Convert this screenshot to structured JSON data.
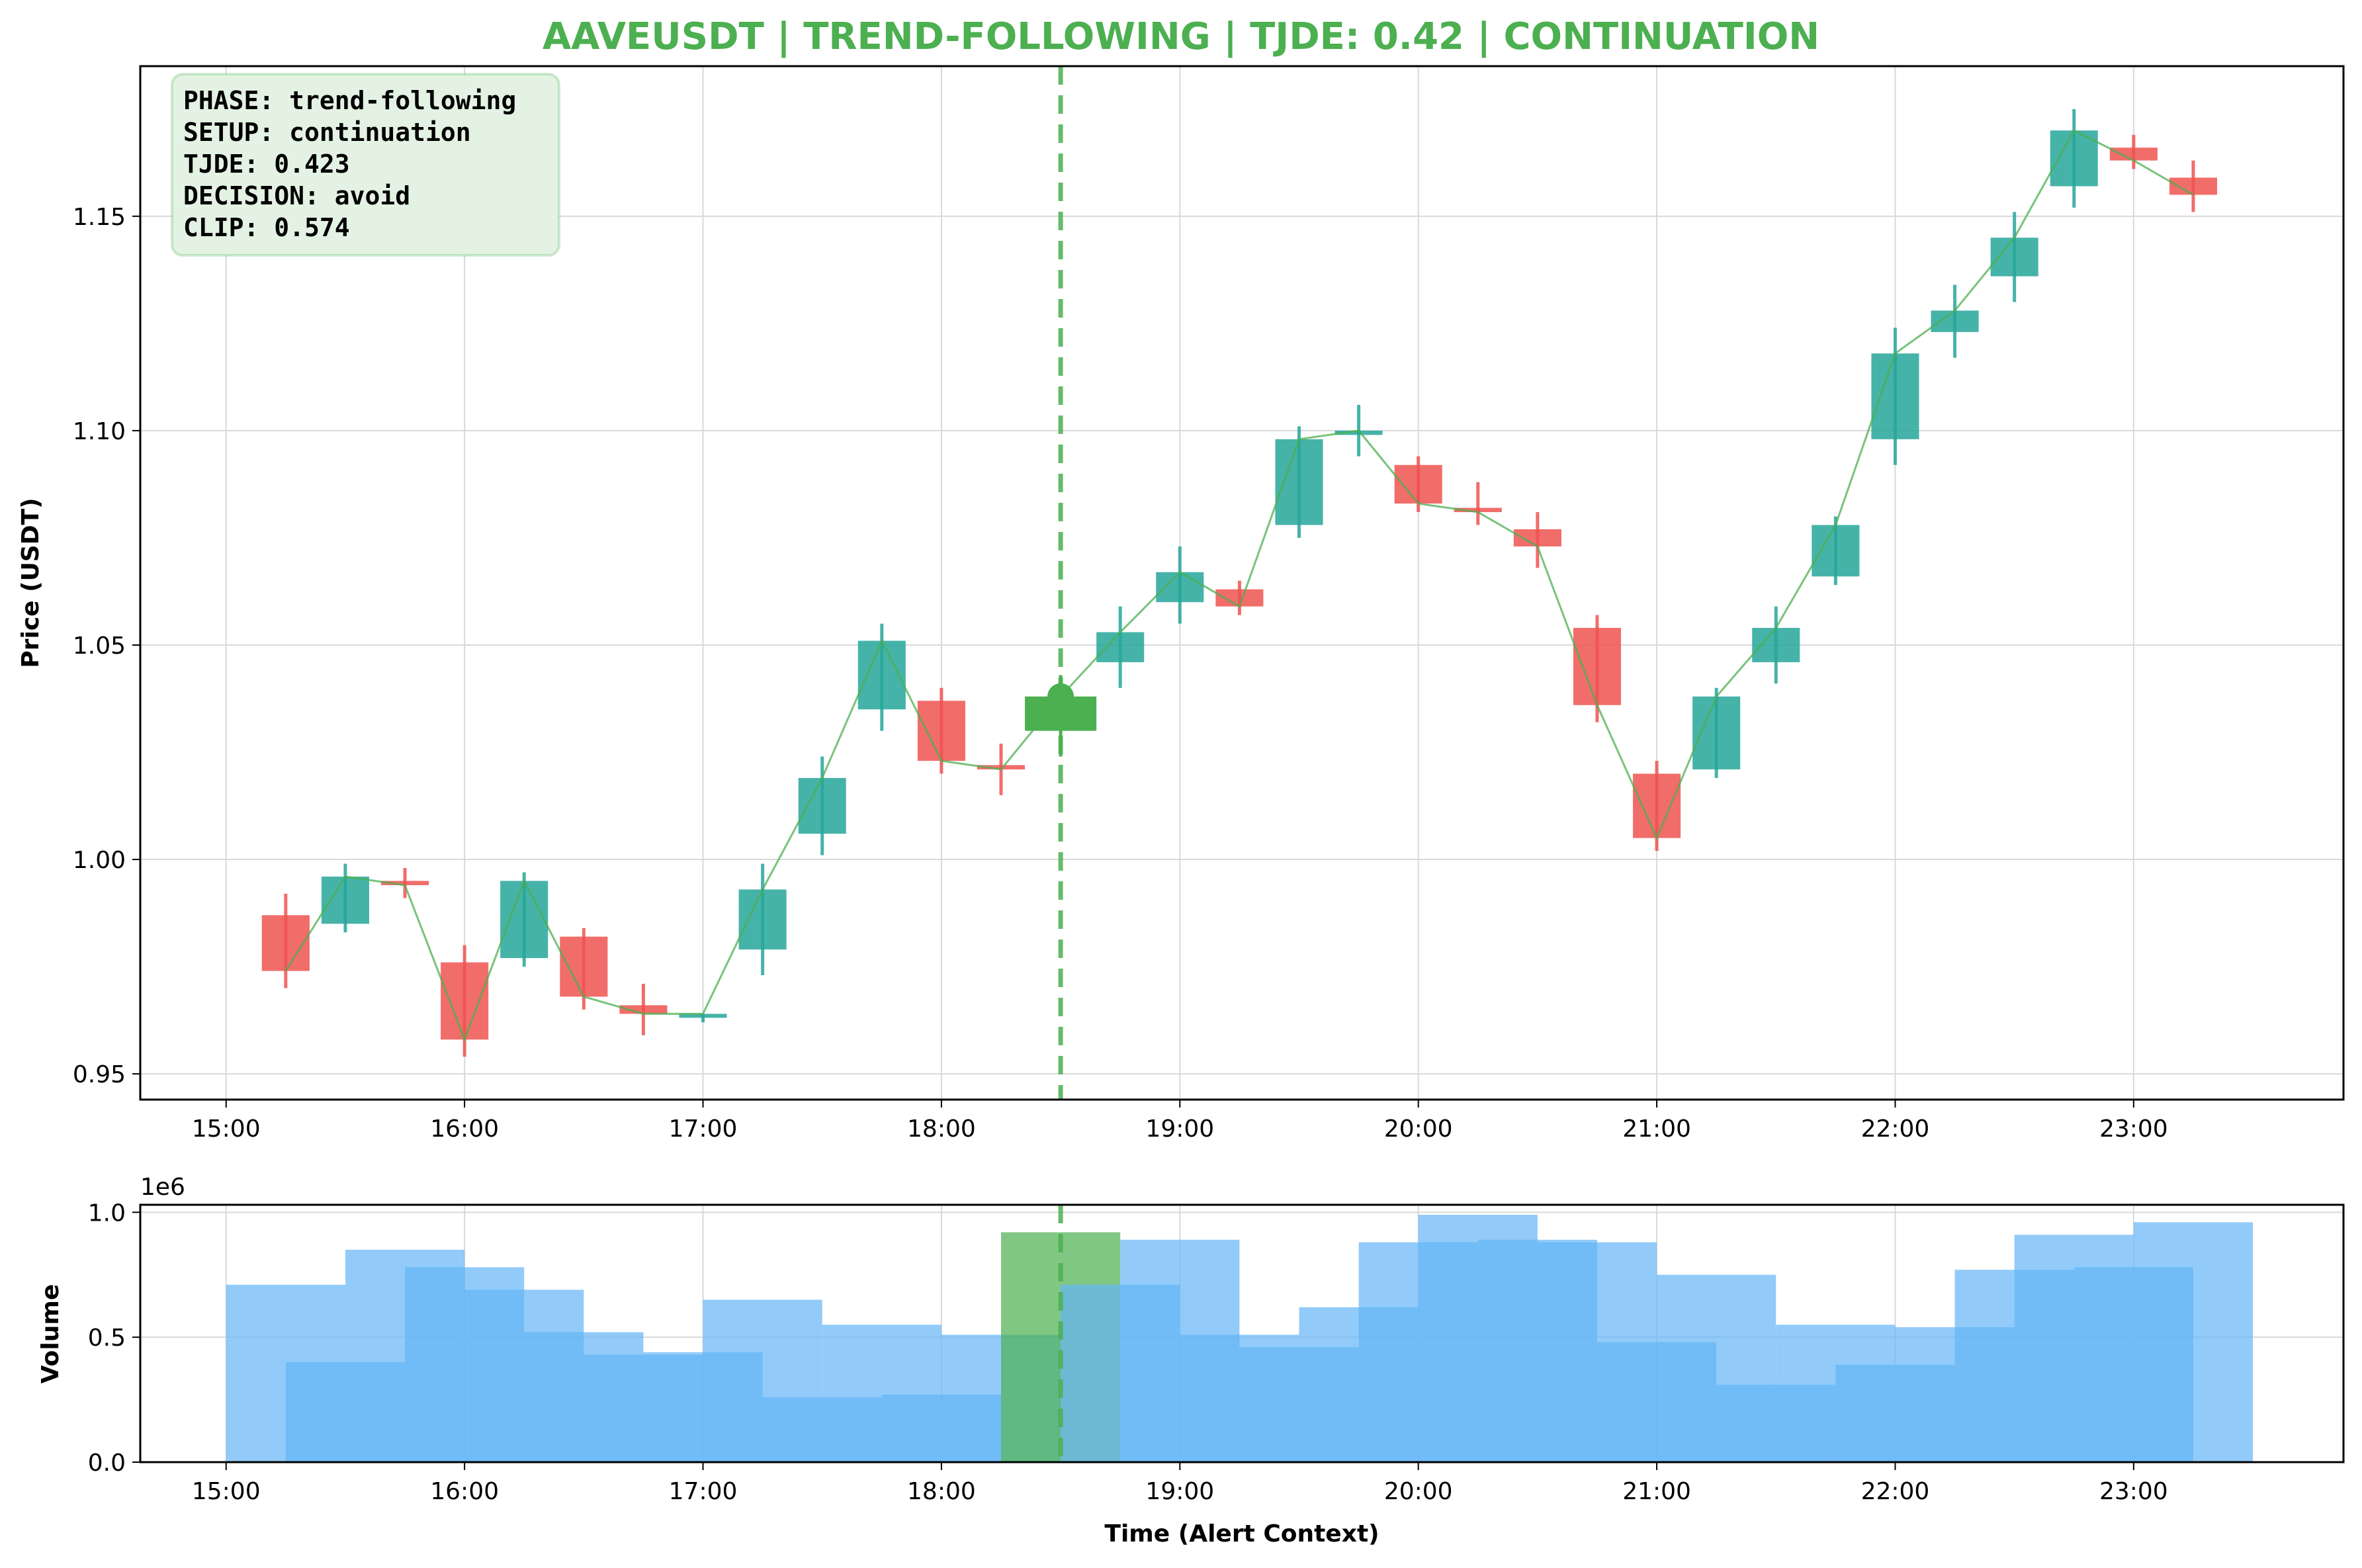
{
  "title": "AAVEUSDT | TREND-FOLLOWING | TJDE: 0.42 | CONTINUATION",
  "colors": {
    "title": "#4caf50",
    "bull": "#26a69a",
    "bear": "#ef5350",
    "alert": "#4caf50",
    "close_line": "#4caf50",
    "volume": "#64b5f6",
    "volume_alert": "#4caf50",
    "infobox_fill": "#e3f2e3",
    "infobox_stroke": "#4caf50"
  },
  "info_box": {
    "line1": "PHASE: trend-following",
    "line2": "SETUP: continuation",
    "line3": "TJDE: 0.423",
    "line4": "DECISION: avoid",
    "line5": "CLIP: 0.574"
  },
  "price_axis": {
    "label": "Price (USDT)",
    "ylim": [
      0.944,
      1.185
    ],
    "ticks": [
      "0.95",
      "1.00",
      "1.05",
      "1.10",
      "1.15"
    ],
    "tick_values": [
      0.95,
      1.0,
      1.05,
      1.1,
      1.15
    ]
  },
  "volume_axis": {
    "label": "Volume",
    "multiplier": "1e6",
    "ylim": [
      0,
      1.03
    ],
    "ticks": [
      "0.0",
      "0.5",
      "1.0"
    ],
    "tick_values": [
      0.0,
      0.5,
      1.0
    ]
  },
  "time_axis": {
    "label": "Time (Alert Context)",
    "xlim": [
      14.64,
      23.88
    ],
    "ticks": [
      "15:00",
      "16:00",
      "17:00",
      "18:00",
      "19:00",
      "20:00",
      "21:00",
      "22:00",
      "23:00"
    ],
    "tick_values": [
      15,
      16,
      17,
      18,
      19,
      20,
      21,
      22,
      23
    ]
  },
  "chart_data": {
    "type": "candlestick",
    "title": "AAVEUSDT | TREND-FOLLOWING | TJDE: 0.42 | CONTINUATION",
    "xlabel": "Time (Alert Context)",
    "ylabel": "Price (USDT)",
    "alert_time": 18.5,
    "grid": true,
    "candles": [
      {
        "t": 15.25,
        "o": 0.987,
        "h": 0.992,
        "l": 0.97,
        "c": 0.974
      },
      {
        "t": 15.5,
        "o": 0.985,
        "h": 0.999,
        "l": 0.983,
        "c": 0.996
      },
      {
        "t": 15.75,
        "o": 0.995,
        "h": 0.998,
        "l": 0.991,
        "c": 0.994
      },
      {
        "t": 16.0,
        "o": 0.976,
        "h": 0.98,
        "l": 0.954,
        "c": 0.958
      },
      {
        "t": 16.25,
        "o": 0.977,
        "h": 0.997,
        "l": 0.975,
        "c": 0.995
      },
      {
        "t": 16.5,
        "o": 0.982,
        "h": 0.984,
        "l": 0.965,
        "c": 0.968
      },
      {
        "t": 16.75,
        "o": 0.966,
        "h": 0.971,
        "l": 0.959,
        "c": 0.964
      },
      {
        "t": 17.0,
        "o": 0.964,
        "h": 0.964,
        "l": 0.962,
        "c": 0.964
      },
      {
        "t": 17.25,
        "o": 0.979,
        "h": 0.999,
        "l": 0.973,
        "c": 0.993
      },
      {
        "t": 17.5,
        "o": 1.006,
        "h": 1.024,
        "l": 1.001,
        "c": 1.019
      },
      {
        "t": 17.75,
        "o": 1.035,
        "h": 1.055,
        "l": 1.03,
        "c": 1.051
      },
      {
        "t": 18.0,
        "o": 1.037,
        "h": 1.04,
        "l": 1.02,
        "c": 1.023
      },
      {
        "t": 18.25,
        "o": 1.022,
        "h": 1.027,
        "l": 1.015,
        "c": 1.021
      },
      {
        "t": 18.5,
        "o": 1.03,
        "h": 1.043,
        "l": 1.024,
        "c": 1.038,
        "alert": true
      },
      {
        "t": 18.75,
        "o": 1.046,
        "h": 1.059,
        "l": 1.04,
        "c": 1.053
      },
      {
        "t": 19.0,
        "o": 1.06,
        "h": 1.073,
        "l": 1.055,
        "c": 1.067
      },
      {
        "t": 19.25,
        "o": 1.063,
        "h": 1.065,
        "l": 1.057,
        "c": 1.059
      },
      {
        "t": 19.5,
        "o": 1.078,
        "h": 1.101,
        "l": 1.075,
        "c": 1.098
      },
      {
        "t": 19.75,
        "o": 1.099,
        "h": 1.106,
        "l": 1.094,
        "c": 1.1
      },
      {
        "t": 20.0,
        "o": 1.092,
        "h": 1.094,
        "l": 1.081,
        "c": 1.083
      },
      {
        "t": 20.25,
        "o": 1.082,
        "h": 1.088,
        "l": 1.078,
        "c": 1.081
      },
      {
        "t": 20.5,
        "o": 1.077,
        "h": 1.081,
        "l": 1.068,
        "c": 1.073
      },
      {
        "t": 20.75,
        "o": 1.054,
        "h": 1.057,
        "l": 1.032,
        "c": 1.036
      },
      {
        "t": 21.0,
        "o": 1.02,
        "h": 1.023,
        "l": 1.002,
        "c": 1.005
      },
      {
        "t": 21.25,
        "o": 1.021,
        "h": 1.04,
        "l": 1.019,
        "c": 1.038
      },
      {
        "t": 21.5,
        "o": 1.046,
        "h": 1.059,
        "l": 1.041,
        "c": 1.054
      },
      {
        "t": 21.75,
        "o": 1.066,
        "h": 1.08,
        "l": 1.064,
        "c": 1.078
      },
      {
        "t": 22.0,
        "o": 1.098,
        "h": 1.124,
        "l": 1.092,
        "c": 1.118
      },
      {
        "t": 22.25,
        "o": 1.123,
        "h": 1.134,
        "l": 1.117,
        "c": 1.128
      },
      {
        "t": 22.5,
        "o": 1.136,
        "h": 1.151,
        "l": 1.13,
        "c": 1.145
      },
      {
        "t": 22.75,
        "o": 1.157,
        "h": 1.175,
        "l": 1.152,
        "c": 1.17
      },
      {
        "t": 23.0,
        "o": 1.166,
        "h": 1.169,
        "l": 1.161,
        "c": 1.163
      },
      {
        "t": 23.25,
        "o": 1.159,
        "h": 1.163,
        "l": 1.151,
        "c": 1.155
      }
    ],
    "volume": {
      "ylabel": "Volume",
      "scale": "1e6",
      "values": [
        0.71,
        0.4,
        0.85,
        0.78,
        0.69,
        0.52,
        0.43,
        0.44,
        0.65,
        0.26,
        0.55,
        0.27,
        0.51,
        0.92,
        0.71,
        0.89,
        0.51,
        0.46,
        0.62,
        0.88,
        0.99,
        0.89,
        0.88,
        0.48,
        0.75,
        0.31,
        0.55,
        0.39,
        0.54,
        0.77,
        0.91,
        0.78,
        0.96
      ]
    }
  }
}
